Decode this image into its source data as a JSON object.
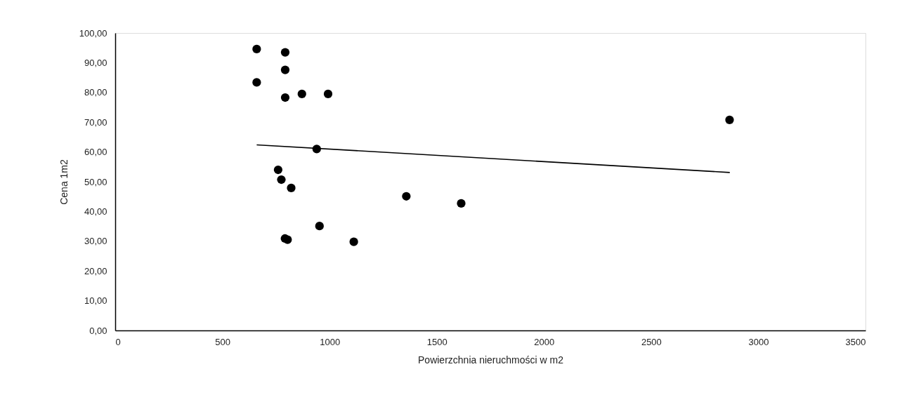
{
  "chart_data": {
    "type": "scatter",
    "xlabel": "Powierzchnia nieruchmości w m2",
    "ylabel": "Cena 1m2",
    "series": [
      {
        "color": "#000000",
        "marker": "circle",
        "x": [
          660,
          793,
          793,
          660,
          793,
          871,
          993,
          940,
          760,
          775,
          821,
          1358,
          1614,
          953,
          792,
          804,
          1113,
          2866
        ],
        "values": [
          94.6,
          93.5,
          87.6,
          83.4,
          78.3,
          79.5,
          79.5,
          61.0,
          54.0,
          50.7,
          47.9,
          45.1,
          42.7,
          35.1,
          30.9,
          30.5,
          29.8,
          70.8
        ]
      },
      {
        "type": "line",
        "color": "#000000",
        "line_style": "solid",
        "x": [
          660,
          2867
        ],
        "values": [
          62.4,
          53.1
        ]
      }
    ],
    "xlim": [
      0,
      3500
    ],
    "xticks": [
      0,
      500,
      1000,
      1500,
      2000,
      2500,
      3000,
      3500
    ],
    "ylim": [
      0,
      100
    ],
    "yticks": [
      {
        "value": 0,
        "label": "0,00"
      },
      {
        "value": 10,
        "label": "10,00"
      },
      {
        "value": 20,
        "label": "20,00"
      },
      {
        "value": 30,
        "label": "30,00"
      },
      {
        "value": 40,
        "label": "40,00"
      },
      {
        "value": 50,
        "label": "50,00"
      },
      {
        "value": 60,
        "label": "60,00"
      },
      {
        "value": 70,
        "label": "70,00"
      },
      {
        "value": 80,
        "label": "80,00"
      },
      {
        "value": 90,
        "label": "90,00"
      },
      {
        "value": 100,
        "label": "100,00"
      }
    ],
    "grid": false
  }
}
